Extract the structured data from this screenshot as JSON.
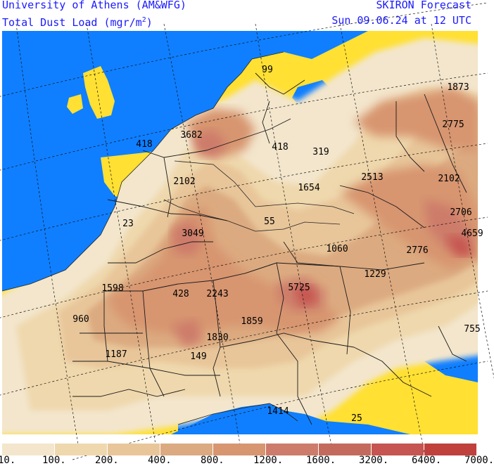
{
  "header": {
    "institution": "University of Athens (AM&WFG)",
    "field_name": "Total Dust Load (mgr/m",
    "field_unit_exp": "2",
    "field_close": ")",
    "product": "SKIRON Forecast",
    "valid_time": "Sun 09.06.24 at 12 UTC"
  },
  "map": {
    "ocean_color": "#0f7fff",
    "no_dust_land_color": "#ffe033",
    "maxima_labels": [
      {
        "text": "99"
      },
      {
        "text": "1873"
      },
      {
        "text": "3682"
      },
      {
        "text": "2775"
      },
      {
        "text": "418"
      },
      {
        "text": "418"
      },
      {
        "text": "319"
      },
      {
        "text": "2513"
      },
      {
        "text": "2102"
      },
      {
        "text": "2102"
      },
      {
        "text": "1654"
      },
      {
        "text": "23"
      },
      {
        "text": "55"
      },
      {
        "text": "2706"
      },
      {
        "text": "3049"
      },
      {
        "text": "4659"
      },
      {
        "text": "1060"
      },
      {
        "text": "2776"
      },
      {
        "text": "1229"
      },
      {
        "text": "1598"
      },
      {
        "text": "5725"
      },
      {
        "text": "428"
      },
      {
        "text": "2243"
      },
      {
        "text": "960"
      },
      {
        "text": "1859"
      },
      {
        "text": "755"
      },
      {
        "text": "1830"
      },
      {
        "text": "1187"
      },
      {
        "text": "149"
      },
      {
        "text": "1414"
      },
      {
        "text": "25"
      }
    ]
  },
  "colorbar": {
    "bins": [
      {
        "color": "#f3e6cc"
      },
      {
        "color": "#efd8ad"
      },
      {
        "color": "#e8c69a"
      },
      {
        "color": "#dcaa80"
      },
      {
        "color": "#d79570"
      },
      {
        "color": "#cd7b6a"
      },
      {
        "color": "#c46a5c"
      },
      {
        "color": "#c65450"
      },
      {
        "color": "#c0413c"
      }
    ],
    "labels": [
      "10.",
      "100.",
      "200.",
      "400.",
      "800.",
      "1200.",
      "1600.",
      "3200.",
      "6400.",
      "7000."
    ]
  }
}
